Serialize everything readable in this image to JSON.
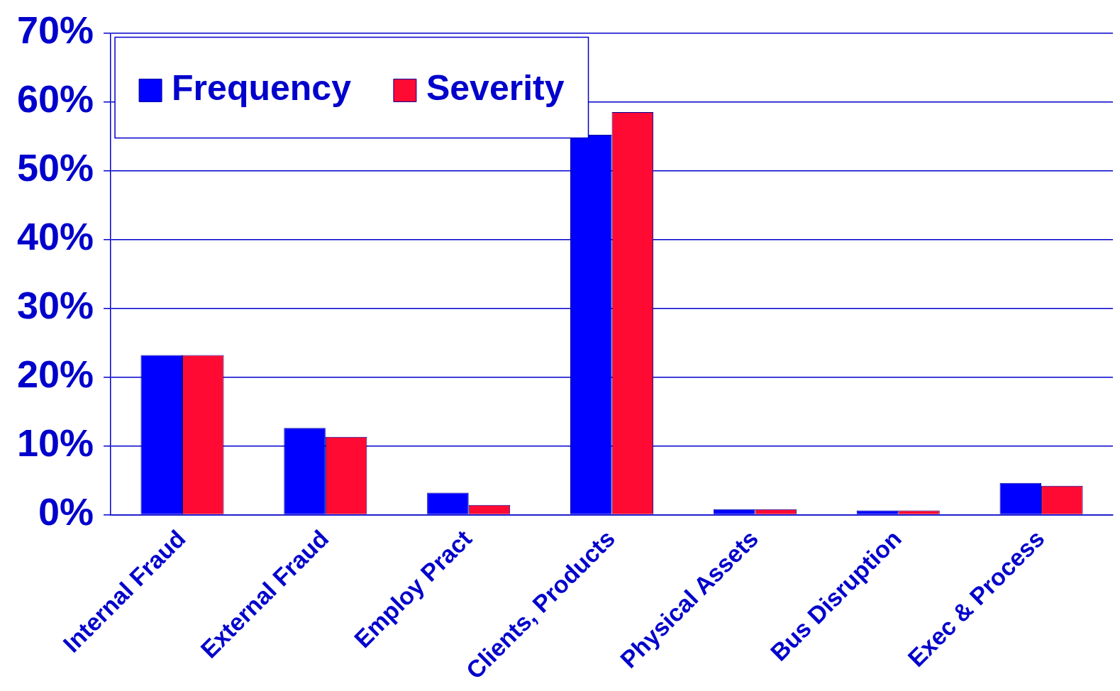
{
  "chart_data": {
    "type": "bar",
    "categories": [
      "Internal Fraud",
      "External Fraud",
      "Employ Pract",
      "Clients, Products",
      "Physical Assets",
      "Bus Disruption",
      "Exec & Process"
    ],
    "series": [
      {
        "name": "Frequency",
        "color": "#0000ff",
        "values": [
          23.2,
          12.6,
          3.2,
          55.2,
          0.8,
          0.6,
          4.6
        ]
      },
      {
        "name": "Severity",
        "color": "#ff0a33",
        "values": [
          23.2,
          11.3,
          1.4,
          58.5,
          0.8,
          0.6,
          4.2
        ]
      }
    ],
    "ylim": [
      0,
      70
    ],
    "yticks": [
      {
        "value": 0,
        "label": "0%"
      },
      {
        "value": 10,
        "label": "10%"
      },
      {
        "value": 20,
        "label": "20%"
      },
      {
        "value": 30,
        "label": "30%"
      },
      {
        "value": 40,
        "label": "40%"
      },
      {
        "value": 50,
        "label": "50%"
      },
      {
        "value": 60,
        "label": "60%"
      },
      {
        "value": 70,
        "label": "70%"
      }
    ],
    "grid": "y",
    "legend": "top left"
  }
}
